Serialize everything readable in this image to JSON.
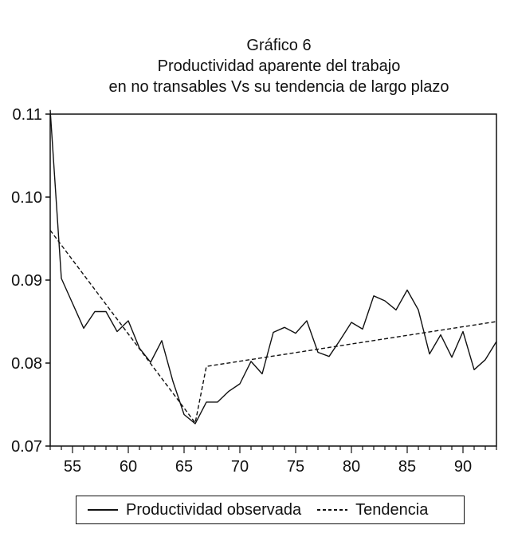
{
  "chart_data": {
    "type": "line",
    "title_lines": [
      "Gráfico 6",
      "Productividad aparente del trabajo",
      "en no transables Vs su tendencia de largo plazo"
    ],
    "xlabel": "",
    "ylabel": "",
    "xlim": [
      53,
      93
    ],
    "ylim": [
      0.07,
      0.11
    ],
    "x_ticks": [
      55,
      60,
      65,
      70,
      75,
      80,
      85,
      90
    ],
    "x_tick_labels": [
      "55",
      "60",
      "65",
      "70",
      "75",
      "80",
      "85",
      "90"
    ],
    "y_ticks": [
      0.07,
      0.08,
      0.09,
      0.1,
      0.11
    ],
    "y_tick_labels": [
      "0.07",
      "0.08",
      "0.09",
      "0.10",
      "0.11"
    ],
    "grid": false,
    "legend_position": "bottom",
    "series": [
      {
        "name": "Productividad observada",
        "style": "solid",
        "color": "#111111",
        "x": [
          53,
          54,
          55,
          56,
          57,
          58,
          59,
          60,
          61,
          62,
          63,
          64,
          65,
          66,
          67,
          68,
          69,
          70,
          71,
          72,
          73,
          74,
          75,
          76,
          77,
          78,
          79,
          80,
          81,
          82,
          83,
          84,
          85,
          86,
          87,
          88,
          89,
          90,
          91,
          92,
          93
        ],
        "y": [
          0.1105,
          0.0902,
          0.0872,
          0.0842,
          0.0862,
          0.0862,
          0.0838,
          0.0851,
          0.0818,
          0.0801,
          0.0827,
          0.0778,
          0.0738,
          0.0727,
          0.0753,
          0.0753,
          0.0766,
          0.0775,
          0.0802,
          0.0787,
          0.0837,
          0.0843,
          0.0836,
          0.0851,
          0.0813,
          0.0808,
          0.0828,
          0.0849,
          0.0841,
          0.0881,
          0.0875,
          0.0864,
          0.0888,
          0.0864,
          0.0811,
          0.0834,
          0.0807,
          0.0838,
          0.0792,
          0.0804,
          0.0826
        ]
      },
      {
        "name": "Tendencia",
        "style": "dashed",
        "color": "#111111",
        "x": [
          53,
          66,
          67,
          93
        ],
        "y": [
          0.096,
          0.0728,
          0.0796,
          0.085
        ]
      }
    ]
  }
}
